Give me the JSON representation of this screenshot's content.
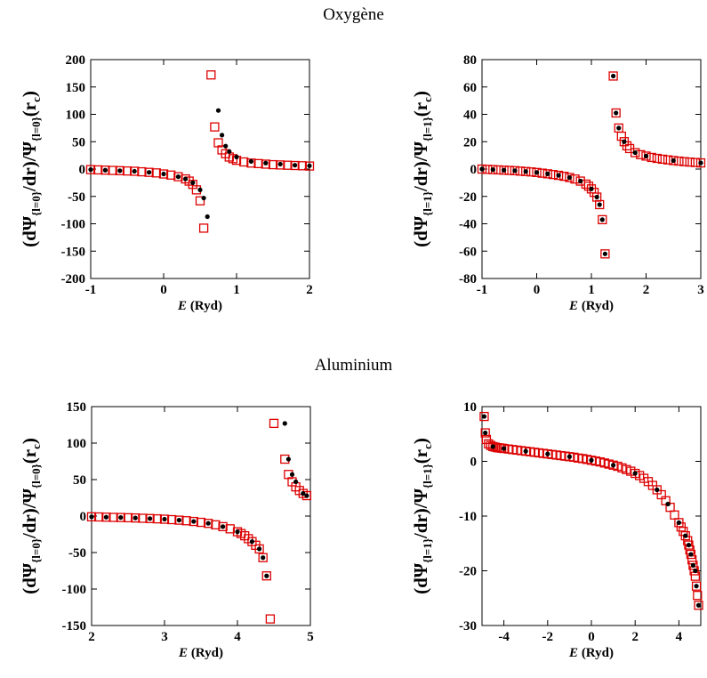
{
  "sections": {
    "top_title": "Oxygène",
    "bottom_title": "Aluminium"
  },
  "marker_colors": {
    "square": "#dd0000",
    "dot": "#000000"
  },
  "chart_data": [
    {
      "type": "scatter",
      "xlabel_italic": "E",
      "xlabel_rest": " (Ryd)",
      "ylabel_main": "(dΨ",
      "ylabel_sub1": "{l=0}",
      "ylabel_mid": "/dr)/Ψ",
      "ylabel_sub2": "{l=0}",
      "ylabel_end": "(r",
      "ylabel_sub3": "c",
      "ylabel_close": ")",
      "xlim": [
        -1,
        2
      ],
      "ylim": [
        -200,
        200
      ],
      "xticks": [
        -1,
        0,
        1,
        2
      ],
      "xtick_labels": [
        "-1",
        "0",
        "1",
        "2"
      ],
      "yticks": [
        -200,
        -150,
        -100,
        -50,
        0,
        50,
        100,
        150,
        200
      ],
      "ytick_labels": [
        "-200",
        "-150",
        "-100",
        "-50",
        "0",
        "50",
        "100",
        "150",
        "200"
      ],
      "series": [
        {
          "marker": "square",
          "x": [
            -1.0,
            -0.9,
            -0.8,
            -0.7,
            -0.6,
            -0.5,
            -0.4,
            -0.3,
            -0.2,
            -0.1,
            0.0,
            0.1,
            0.2,
            0.3,
            0.35,
            0.4,
            0.45,
            0.5,
            0.55,
            0.65,
            0.7,
            0.75,
            0.8,
            0.85,
            0.9,
            0.95,
            1.0,
            1.1,
            1.2,
            1.3,
            1.4,
            1.5,
            1.6,
            1.7,
            1.8,
            1.9,
            2.0
          ],
          "y": [
            -1,
            -1.5,
            -2,
            -2.5,
            -3,
            -3.5,
            -4,
            -5,
            -6,
            -7,
            -9,
            -11,
            -14,
            -18,
            -22,
            -28,
            -38,
            -58,
            -108,
            172,
            77,
            48,
            35,
            28,
            22,
            19,
            16,
            13,
            11,
            10,
            9,
            8,
            7.5,
            7,
            6.5,
            6,
            5.5
          ]
        },
        {
          "marker": "dot",
          "x": [
            -1.0,
            -0.8,
            -0.6,
            -0.4,
            -0.2,
            0.0,
            0.2,
            0.3,
            0.4,
            0.5,
            0.55,
            0.6,
            0.75,
            0.8,
            0.85,
            0.9,
            1.0,
            1.2,
            1.4,
            1.6,
            1.8,
            2.0
          ],
          "y": [
            -1,
            -2,
            -3,
            -4,
            -6,
            -9,
            -14,
            -18,
            -25,
            -38,
            -53,
            -87,
            107,
            62,
            42,
            32,
            22,
            14,
            11,
            9,
            7,
            6
          ]
        }
      ]
    },
    {
      "type": "scatter",
      "xlabel_italic": "E",
      "xlabel_rest": " (Ryd)",
      "ylabel_main": "(dΨ",
      "ylabel_sub1": "{l=1}",
      "ylabel_mid": "/dr)/Ψ",
      "ylabel_sub2": "{l=1}",
      "ylabel_end": "(r",
      "ylabel_sub3": "c",
      "ylabel_close": ")",
      "xlim": [
        -1,
        3
      ],
      "ylim": [
        -80,
        80
      ],
      "xticks": [
        -1,
        0,
        1,
        2,
        3
      ],
      "xtick_labels": [
        "-1",
        "0",
        "1",
        "2",
        "3"
      ],
      "yticks": [
        -80,
        -60,
        -40,
        -20,
        0,
        20,
        40,
        60,
        80
      ],
      "ytick_labels": [
        "-80",
        "-60",
        "-40",
        "-20",
        "0",
        "20",
        "40",
        "60",
        "80"
      ],
      "series": [
        {
          "marker": "square",
          "x": [
            -1.0,
            -0.9,
            -0.8,
            -0.7,
            -0.6,
            -0.5,
            -0.4,
            -0.3,
            -0.2,
            -0.1,
            0.0,
            0.1,
            0.2,
            0.3,
            0.4,
            0.5,
            0.6,
            0.7,
            0.8,
            0.9,
            0.95,
            1.0,
            1.05,
            1.1,
            1.15,
            1.2,
            1.25,
            1.4,
            1.45,
            1.5,
            1.55,
            1.6,
            1.65,
            1.7,
            1.8,
            1.9,
            2.0,
            2.1,
            2.2,
            2.3,
            2.4,
            2.5,
            2.6,
            2.7,
            2.8,
            2.9,
            3.0
          ],
          "y": [
            0,
            -0.2,
            -0.4,
            -0.6,
            -0.8,
            -1,
            -1.2,
            -1.5,
            -1.8,
            -2.1,
            -2.5,
            -3,
            -3.5,
            -4,
            -4.6,
            -5.3,
            -6.2,
            -7.3,
            -8.8,
            -11,
            -12.5,
            -14.5,
            -17,
            -20.5,
            -26,
            -37,
            -62,
            68,
            41,
            30,
            24,
            20,
            17,
            15,
            12,
            10.5,
            9.5,
            8.5,
            7.8,
            7.2,
            6.7,
            6.2,
            5.8,
            5.4,
            5.1,
            4.8,
            4.5
          ]
        },
        {
          "marker": "dot",
          "x": [
            -1.0,
            -0.8,
            -0.6,
            -0.4,
            -0.2,
            0.0,
            0.2,
            0.4,
            0.6,
            0.8,
            1.0,
            1.1,
            1.15,
            1.2,
            1.25,
            1.4,
            1.45,
            1.5,
            1.6,
            1.8,
            2.0,
            2.5,
            3.0
          ],
          "y": [
            0,
            -0.4,
            -0.8,
            -1.2,
            -1.8,
            -2.5,
            -3.5,
            -4.6,
            -6.2,
            -8.8,
            -14.5,
            -20.5,
            -26,
            -37,
            -62,
            68,
            41,
            30,
            20,
            12,
            9.5,
            6.2,
            4.5
          ]
        }
      ]
    },
    {
      "type": "scatter",
      "xlabel_italic": "E",
      "xlabel_rest": " (Ryd)",
      "ylabel_main": "(dΨ",
      "ylabel_sub1": "{l=0}",
      "ylabel_mid": "/dr)/Ψ",
      "ylabel_sub2": "{l=0}",
      "ylabel_end": "(r",
      "ylabel_sub3": "c",
      "ylabel_close": ")",
      "xlim": [
        2,
        5
      ],
      "ylim": [
        -150,
        150
      ],
      "xticks": [
        2,
        3,
        4,
        5
      ],
      "xtick_labels": [
        "2",
        "3",
        "4",
        "5"
      ],
      "yticks": [
        -150,
        -100,
        -50,
        0,
        50,
        100,
        150
      ],
      "ytick_labels": [
        "-150",
        "-100",
        "-50",
        "0",
        "50",
        "100",
        "150"
      ],
      "series": [
        {
          "marker": "square",
          "x": [
            2.0,
            2.1,
            2.2,
            2.3,
            2.4,
            2.5,
            2.6,
            2.7,
            2.8,
            2.9,
            3.0,
            3.1,
            3.2,
            3.3,
            3.4,
            3.5,
            3.6,
            3.7,
            3.8,
            3.9,
            4.0,
            4.05,
            4.1,
            4.15,
            4.2,
            4.25,
            4.3,
            4.35,
            4.4,
            4.45,
            4.5,
            4.65,
            4.7,
            4.75,
            4.8,
            4.85,
            4.9,
            4.95
          ],
          "y": [
            -1,
            -1.2,
            -1.5,
            -1.8,
            -2,
            -2.3,
            -2.6,
            -3,
            -3.4,
            -3.8,
            -4.3,
            -4.9,
            -5.6,
            -6.4,
            -7.4,
            -8.6,
            -10,
            -12,
            -14.5,
            -17.5,
            -21.5,
            -24,
            -27,
            -31,
            -35,
            -40,
            -45,
            -57,
            -82,
            -141,
            127,
            78,
            57,
            47,
            40,
            35,
            31,
            28
          ]
        },
        {
          "marker": "dot",
          "x": [
            2.0,
            2.2,
            2.4,
            2.6,
            2.8,
            3.0,
            3.2,
            3.4,
            3.6,
            3.8,
            4.0,
            4.2,
            4.3,
            4.35,
            4.4,
            4.65,
            4.7,
            4.75,
            4.8,
            4.9,
            4.95
          ],
          "y": [
            -1,
            -1.5,
            -2,
            -2.6,
            -3.4,
            -4.3,
            -5.6,
            -7.4,
            -10,
            -14.5,
            -21.5,
            -35,
            -45,
            -57,
            -82,
            127,
            78,
            57,
            47,
            31,
            28
          ]
        }
      ]
    },
    {
      "type": "scatter",
      "xlabel_italic": "E",
      "xlabel_rest": " (Ryd)",
      "ylabel_main": "(dΨ",
      "ylabel_sub1": "{l=1}",
      "ylabel_mid": "/dr)/Ψ",
      "ylabel_sub2": "{l=1}",
      "ylabel_end": "(r",
      "ylabel_sub3": "c",
      "ylabel_close": ")",
      "xlim": [
        -5,
        5
      ],
      "ylim": [
        -30,
        10
      ],
      "xticks": [
        -4,
        -2,
        0,
        2,
        4
      ],
      "xtick_labels": [
        "-4",
        "-2",
        "0",
        "2",
        "4"
      ],
      "yticks": [
        -30,
        -20,
        -10,
        0,
        10
      ],
      "ytick_labels": [
        "-30",
        "-20",
        "-10",
        "0",
        "10"
      ],
      "series": [
        {
          "marker": "square",
          "x": [
            -4.9,
            -4.85,
            -4.8,
            -4.7,
            -4.6,
            -4.5,
            -4.4,
            -4.3,
            -4.2,
            -4.1,
            -4.0,
            -3.8,
            -3.6,
            -3.4,
            -3.2,
            -3.0,
            -2.8,
            -2.6,
            -2.4,
            -2.2,
            -2.0,
            -1.8,
            -1.6,
            -1.4,
            -1.2,
            -1.0,
            -0.8,
            -0.6,
            -0.4,
            -0.2,
            0.0,
            0.2,
            0.4,
            0.6,
            0.8,
            1.0,
            1.2,
            1.4,
            1.6,
            1.8,
            2.0,
            2.2,
            2.4,
            2.6,
            2.8,
            3.0,
            3.2,
            3.4,
            3.6,
            3.8,
            4.0,
            4.1,
            4.2,
            4.3,
            4.4,
            4.45,
            4.5,
            4.55,
            4.6,
            4.65,
            4.7,
            4.75,
            4.8,
            4.85,
            4.9
          ],
          "y": [
            8.2,
            5.2,
            4.0,
            3.2,
            2.9,
            2.7,
            2.6,
            2.5,
            2.45,
            2.4,
            2.35,
            2.25,
            2.15,
            2.05,
            1.95,
            1.85,
            1.75,
            1.65,
            1.55,
            1.45,
            1.35,
            1.25,
            1.15,
            1.05,
            0.95,
            0.85,
            0.75,
            0.6,
            0.5,
            0.35,
            0.2,
            0.05,
            -0.1,
            -0.3,
            -0.5,
            -0.7,
            -0.9,
            -1.2,
            -1.5,
            -1.8,
            -2.2,
            -2.6,
            -3.1,
            -3.7,
            -4.4,
            -5.2,
            -6.1,
            -7.2,
            -8.4,
            -9.8,
            -11.2,
            -12.0,
            -12.8,
            -13.6,
            -14.5,
            -15.3,
            -16.2,
            -17.0,
            -18.0,
            -19.0,
            -20.0,
            -21.0,
            -22.8,
            -24.5,
            -26.3
          ]
        },
        {
          "marker": "dot",
          "x": [
            -4.9,
            -4.85,
            -4.5,
            -4.0,
            -3.0,
            -2.0,
            -1.0,
            0.0,
            1.0,
            2.0,
            3.0,
            3.5,
            4.0,
            4.3,
            4.45,
            4.55,
            4.65,
            4.75,
            4.8,
            4.9
          ],
          "y": [
            8.2,
            5.2,
            2.7,
            2.35,
            1.85,
            1.35,
            0.85,
            0.2,
            -0.7,
            -2.2,
            -5.2,
            -7.8,
            -11.2,
            -13.6,
            -15.3,
            -17.0,
            -19.0,
            -20.0,
            -22.8,
            -26.3
          ]
        }
      ]
    }
  ]
}
